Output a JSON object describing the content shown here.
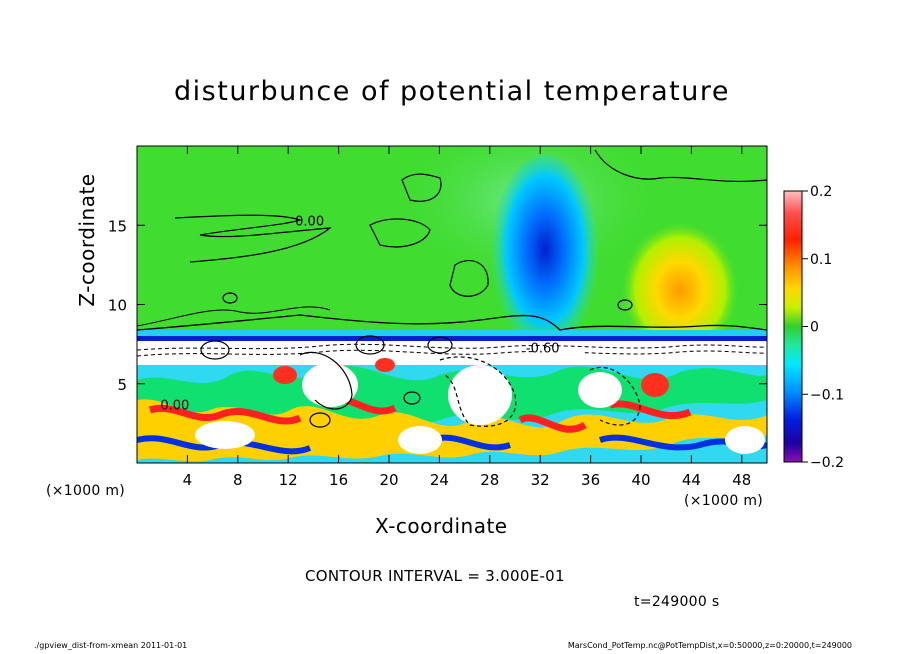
{
  "chart_data": {
    "type": "heatmap",
    "title": "disturbunce of potential temperature",
    "xlabel": "X-coordinate",
    "ylabel": "Z-coordinate",
    "x_unit": "(×1000 m)",
    "y_unit": "(×1000 m)",
    "xlim": [
      0,
      50
    ],
    "ylim": [
      0,
      20
    ],
    "x_ticks": [
      4,
      8,
      12,
      16,
      20,
      24,
      28,
      32,
      36,
      40,
      44,
      48
    ],
    "y_ticks": [
      5,
      10,
      15
    ],
    "colorbar": {
      "range": [
        -0.2,
        0.2
      ],
      "tick_labels": [
        "0.2",
        "0.1",
        "0",
        "−0.1",
        "−0.2"
      ],
      "tick_values": [
        0.2,
        0.1,
        0,
        -0.1,
        -0.2
      ]
    },
    "contour_labels": [
      {
        "text": "0.00",
        "x": 13.7,
        "z": 15.3
      },
      {
        "text": "-0.60",
        "x": 32.2,
        "z": 7.3
      },
      {
        "text": "0.00",
        "x": 3.0,
        "z": 3.7
      }
    ],
    "field_features": [
      {
        "x": 32,
        "z": 12,
        "value": -0.17
      },
      {
        "x": 43,
        "z": 10,
        "value": 0.08
      }
    ]
  },
  "contour_interval": "CONTOUR INTERVAL = 3.000E-01",
  "time_stamp": "t=249000 s",
  "footer_left": "./gpview_dist-from-xmean   2011-01-01",
  "footer_right": "MarsCond_PotTemp.nc@PotTempDist,x=0:50000,z=0:20000,t=249000",
  "colors": {
    "background_green": "#3ddc2a",
    "positive_max": "#ff9e9e",
    "negative_max": "#7a1a9a"
  }
}
